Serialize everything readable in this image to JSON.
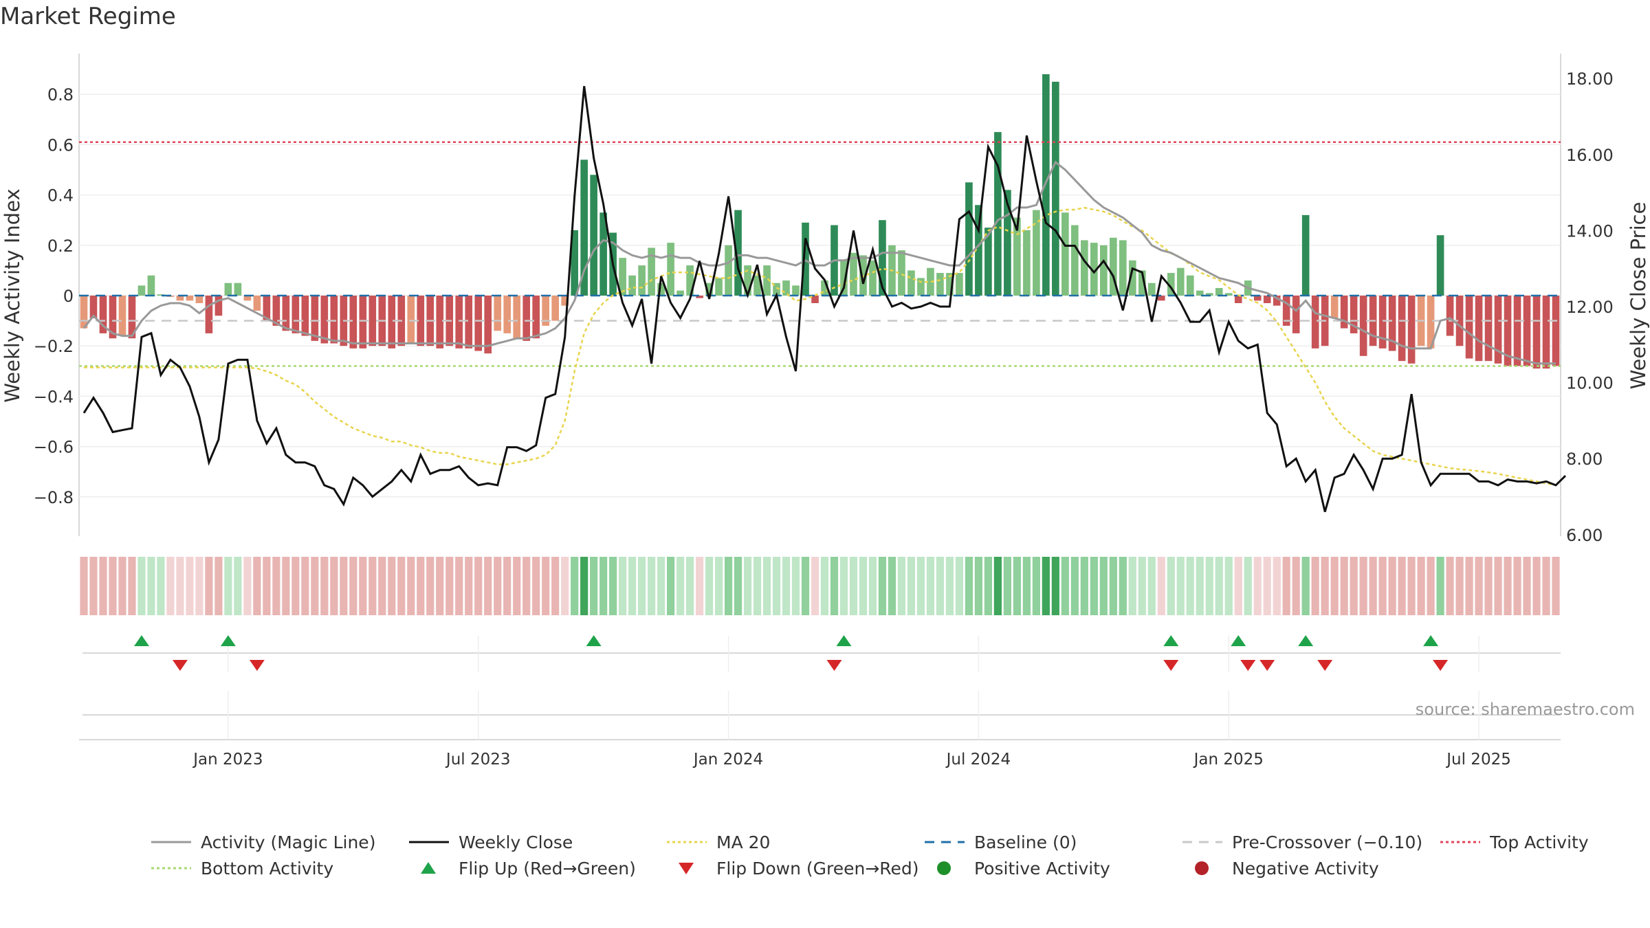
{
  "chart_data": {
    "type": "bar",
    "title": "Market Regime",
    "ylabel_left": "Weekly Activity Index",
    "ylabel_right": "Weekly Close Price",
    "source": "source: sharemaestro.com",
    "y_left_ticks": [
      "0.8",
      "0.6",
      "0.4",
      "0.2",
      "0",
      "−0.2",
      "−0.4",
      "−0.6",
      "−0.8"
    ],
    "y_left_values": [
      0.8,
      0.6,
      0.4,
      0.2,
      0,
      -0.2,
      -0.4,
      -0.6,
      -0.8
    ],
    "y_left_range": [
      -0.95,
      0.95
    ],
    "y_right_ticks": [
      "18.00",
      "16.00",
      "14.00",
      "12.00",
      "10.00",
      "8.00",
      "6.00"
    ],
    "y_right_values": [
      18,
      16,
      14,
      12,
      10,
      8,
      6
    ],
    "y_right_range": [
      6.0,
      18.3
    ],
    "x_ticks": [
      "Jan 2023",
      "Jul 2023",
      "Jan 2024",
      "Jul 2024",
      "Jan 2025",
      "Jul 2025"
    ],
    "x_tick_weeks": [
      15,
      41,
      67,
      93,
      119,
      145
    ],
    "top_activity": 0.61,
    "bottom_activity": -0.28,
    "pre_crossover": -0.1,
    "baseline": 0,
    "activity": [
      -0.13,
      -0.09,
      -0.15,
      -0.17,
      -0.16,
      -0.17,
      0.04,
      0.08,
      0.005,
      -0.005,
      -0.02,
      -0.02,
      -0.03,
      -0.15,
      -0.08,
      0.05,
      0.05,
      -0.02,
      -0.06,
      -0.1,
      -0.12,
      -0.14,
      -0.15,
      -0.16,
      -0.18,
      -0.19,
      -0.19,
      -0.2,
      -0.21,
      -0.21,
      -0.2,
      -0.2,
      -0.21,
      -0.2,
      -0.19,
      -0.2,
      -0.2,
      -0.21,
      -0.2,
      -0.21,
      -0.21,
      -0.22,
      -0.23,
      -0.14,
      -0.15,
      -0.17,
      -0.18,
      -0.17,
      -0.12,
      -0.1,
      -0.04,
      0.26,
      0.54,
      0.48,
      0.33,
      0.25,
      0.15,
      0.08,
      0.12,
      0.19,
      0.05,
      0.21,
      0.02,
      0.12,
      -0.01,
      0.05,
      0.07,
      0.2,
      0.34,
      0.12,
      0.08,
      0.12,
      0.05,
      0.06,
      0.04,
      0.29,
      -0.03,
      0.06,
      0.28,
      0.14,
      0.17,
      0.16,
      0.14,
      0.3,
      0.2,
      0.18,
      0.1,
      0.07,
      0.11,
      0.09,
      0.09,
      0.09,
      0.45,
      0.36,
      0.27,
      0.65,
      0.42,
      0.31,
      0.26,
      0.34,
      0.88,
      0.85,
      0.33,
      0.28,
      0.22,
      0.21,
      0.2,
      0.23,
      0.22,
      0.14,
      0.1,
      0.05,
      -0.02,
      0.09,
      0.11,
      0.08,
      0.02,
      0.01,
      0.03,
      0.01,
      -0.03,
      0.06,
      -0.02,
      -0.03,
      -0.04,
      -0.12,
      -0.15,
      0.32,
      -0.21,
      -0.2,
      -0.09,
      -0.13,
      -0.15,
      -0.24,
      -0.2,
      -0.21,
      -0.22,
      -0.26,
      -0.27,
      -0.2,
      -0.21,
      0.24,
      -0.16,
      -0.2,
      -0.25,
      -0.26,
      -0.26,
      -0.27,
      -0.28,
      -0.28,
      -0.28,
      -0.29,
      -0.29,
      -0.28
    ],
    "magic_line": [
      -0.13,
      -0.08,
      -0.12,
      -0.15,
      -0.16,
      -0.16,
      -0.1,
      -0.06,
      -0.04,
      -0.03,
      -0.03,
      -0.04,
      -0.07,
      -0.04,
      -0.02,
      -0.01,
      -0.03,
      -0.05,
      -0.07,
      -0.09,
      -0.11,
      -0.13,
      -0.14,
      -0.15,
      -0.16,
      -0.17,
      -0.18,
      -0.18,
      -0.19,
      -0.19,
      -0.19,
      -0.19,
      -0.19,
      -0.19,
      -0.19,
      -0.19,
      -0.19,
      -0.19,
      -0.19,
      -0.19,
      -0.2,
      -0.2,
      -0.2,
      -0.19,
      -0.18,
      -0.17,
      -0.17,
      -0.16,
      -0.15,
      -0.13,
      -0.09,
      -0.02,
      0.1,
      0.18,
      0.22,
      0.21,
      0.18,
      0.16,
      0.15,
      0.16,
      0.15,
      0.16,
      0.15,
      0.15,
      0.13,
      0.12,
      0.12,
      0.13,
      0.16,
      0.16,
      0.15,
      0.15,
      0.14,
      0.13,
      0.12,
      0.14,
      0.12,
      0.12,
      0.14,
      0.14,
      0.15,
      0.15,
      0.15,
      0.17,
      0.17,
      0.17,
      0.16,
      0.15,
      0.14,
      0.13,
      0.12,
      0.12,
      0.16,
      0.2,
      0.24,
      0.3,
      0.32,
      0.35,
      0.35,
      0.36,
      0.45,
      0.53,
      0.5,
      0.46,
      0.42,
      0.38,
      0.35,
      0.33,
      0.31,
      0.28,
      0.25,
      0.2,
      0.18,
      0.17,
      0.15,
      0.13,
      0.11,
      0.09,
      0.07,
      0.06,
      0.05,
      0.03,
      0.02,
      0.01,
      -0.01,
      -0.03,
      -0.06,
      -0.02,
      -0.07,
      -0.08,
      -0.09,
      -0.1,
      -0.12,
      -0.14,
      -0.16,
      -0.17,
      -0.18,
      -0.2,
      -0.21,
      -0.21,
      -0.21,
      -0.1,
      -0.09,
      -0.12,
      -0.15,
      -0.18,
      -0.2,
      -0.22,
      -0.24,
      -0.25,
      -0.26,
      -0.27,
      -0.27,
      -0.27
    ],
    "weekly_close": [
      9.2,
      9.6,
      9.2,
      8.7,
      8.75,
      8.8,
      11.2,
      11.3,
      10.2,
      10.6,
      10.4,
      9.9,
      9.1,
      7.9,
      8.5,
      10.5,
      10.6,
      10.6,
      9.0,
      8.4,
      8.8,
      8.1,
      7.9,
      7.9,
      7.8,
      7.3,
      7.2,
      6.8,
      7.5,
      7.3,
      7.0,
      7.2,
      7.4,
      7.7,
      7.4,
      8.1,
      7.6,
      7.7,
      7.7,
      7.8,
      7.5,
      7.3,
      7.35,
      7.3,
      8.3,
      8.3,
      8.2,
      8.35,
      9.6,
      9.7,
      11.2,
      14.9,
      17.8,
      15.9,
      14.7,
      13.1,
      12.1,
      11.5,
      12.2,
      10.5,
      12.8,
      12.1,
      11.7,
      12.2,
      13.2,
      12.2,
      13.4,
      14.9,
      13.0,
      12.3,
      13.1,
      11.8,
      12.3,
      11.2,
      10.3,
      13.8,
      13.0,
      12.7,
      12.0,
      12.5,
      14.0,
      12.6,
      13.5,
      12.5,
      12.0,
      12.1,
      11.95,
      12.0,
      12.1,
      12.0,
      12.0,
      14.3,
      14.5,
      14.0,
      16.2,
      15.7,
      14.7,
      14.0,
      16.5,
      15.3,
      14.2,
      14.0,
      13.6,
      13.6,
      13.2,
      12.9,
      13.2,
      12.8,
      11.9,
      13.0,
      12.9,
      11.6,
      12.8,
      12.5,
      12.1,
      11.6,
      11.6,
      11.9,
      10.8,
      11.6,
      11.1,
      10.9,
      11.0,
      9.2,
      8.9,
      7.8,
      8.0,
      7.4,
      7.7,
      6.6,
      7.5,
      7.6,
      8.1,
      7.7,
      7.2,
      8.0,
      8.0,
      8.1,
      9.7,
      7.9,
      7.3,
      7.6,
      7.6,
      7.6,
      7.6,
      7.4,
      7.4,
      7.3,
      7.45,
      7.4,
      7.4,
      7.35,
      7.4,
      7.3,
      7.55
    ],
    "ma20": [
      10.4,
      10.4,
      10.4,
      10.4,
      10.4,
      10.4,
      10.4,
      10.4,
      10.4,
      10.4,
      10.4,
      10.4,
      10.4,
      10.4,
      10.4,
      10.4,
      10.4,
      10.4,
      10.37,
      10.3,
      10.2,
      10.05,
      9.95,
      9.75,
      9.5,
      9.3,
      9.1,
      8.95,
      8.8,
      8.7,
      8.6,
      8.55,
      8.45,
      8.45,
      8.35,
      8.3,
      8.2,
      8.15,
      8.15,
      8.05,
      8.0,
      7.95,
      7.9,
      7.85,
      7.85,
      7.9,
      7.95,
      8.0,
      8.1,
      8.35,
      9.0,
      10.3,
      11.3,
      11.8,
      12.1,
      12.3,
      12.4,
      12.5,
      12.5,
      12.7,
      12.8,
      12.9,
      12.9,
      12.9,
      12.85,
      12.8,
      12.75,
      12.75,
      12.85,
      12.95,
      12.85,
      12.75,
      12.5,
      12.35,
      12.15,
      12.2,
      12.3,
      12.4,
      12.5,
      12.6,
      12.7,
      12.8,
      12.9,
      13.0,
      12.95,
      12.85,
      12.75,
      12.65,
      12.65,
      12.7,
      12.8,
      12.9,
      13.2,
      13.6,
      14.0,
      14.1,
      14.0,
      13.9,
      14.05,
      14.2,
      14.4,
      14.5,
      14.55,
      14.55,
      14.6,
      14.55,
      14.5,
      14.4,
      14.25,
      14.1,
      14.0,
      13.8,
      13.6,
      13.4,
      13.3,
      13.1,
      12.9,
      12.8,
      12.7,
      12.5,
      12.3,
      12.2,
      12.1,
      11.9,
      11.6,
      11.2,
      10.8,
      10.4,
      10.0,
      9.5,
      9.1,
      8.8,
      8.6,
      8.4,
      8.2,
      8.1,
      8.05,
      8.0,
      7.95,
      7.9,
      7.85,
      7.8,
      7.75,
      7.72,
      7.7,
      7.67,
      7.64,
      7.6,
      7.55,
      7.5,
      7.45,
      7.4,
      7.35,
      7.3
    ],
    "flip_up_weeks": [
      6,
      15,
      53,
      79,
      113,
      120,
      127,
      140
    ],
    "flip_down_weeks": [
      10,
      18,
      78,
      113,
      121,
      123,
      129,
      141
    ]
  },
  "legend": [
    {
      "label": "Activity (Magic Line)",
      "icon": "gray-line-icon",
      "color": "#999999"
    },
    {
      "label": "Weekly Close",
      "icon": "black-line-icon",
      "color": "#111111"
    },
    {
      "label": "MA 20",
      "icon": "yellow-dotted-line-icon",
      "color": "#e8d44d"
    },
    {
      "label": "Baseline (0)",
      "icon": "blue-dashed-line-icon",
      "color": "#1f6fa8"
    },
    {
      "label": "Pre-Crossover (−0.10)",
      "icon": "gray-dashed-line-icon",
      "color": "#c8c8c8"
    },
    {
      "label": "Top Activity",
      "icon": "red-dotted-line-icon",
      "color": "#e0455a"
    },
    {
      "label": "Bottom Activity",
      "icon": "green-dotted-line-icon",
      "color": "#a8d870"
    },
    {
      "label": "Flip Up (Red→Green)",
      "icon": "green-up-triangle-icon",
      "color": "#1fa34a"
    },
    {
      "label": "Flip Down (Green→Red)",
      "icon": "red-down-triangle-icon",
      "color": "#d62728"
    },
    {
      "label": "Positive Activity",
      "icon": "green-dot-icon",
      "color": "#1f8f2a"
    },
    {
      "label": "Negative Activity",
      "icon": "red-dot-icon",
      "color": "#b22228"
    }
  ],
  "colors": {
    "pos_strong": "#2e8b57",
    "pos_light": "#7fbf7f",
    "neg_strong": "#c85457",
    "neg_light": "#e69978",
    "close": "#111111",
    "magic": "#999999",
    "ma": "#e8d44d",
    "top": "#e0455a",
    "bottom": "#a8d870",
    "baseline": "#1f6fa8",
    "precross": "#c8c8c8",
    "flip_up": "#1fa34a",
    "flip_down": "#d62728"
  }
}
